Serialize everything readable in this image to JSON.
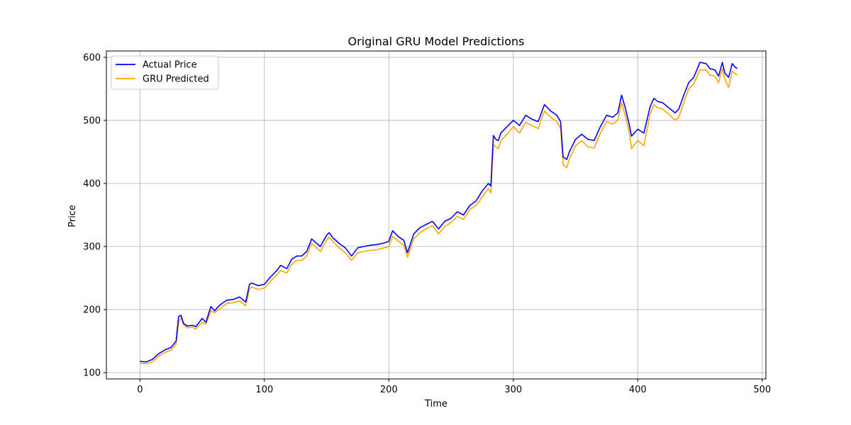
{
  "chart_data": {
    "type": "line",
    "title": "Original GRU Model Predictions",
    "xlabel": "Time",
    "ylabel": "Price",
    "xlim": [
      -27,
      503
    ],
    "ylim": [
      90,
      610
    ],
    "xticks": [
      0,
      100,
      200,
      300,
      400,
      500
    ],
    "yticks": [
      100,
      200,
      300,
      400,
      500,
      600
    ],
    "grid": true,
    "legend_position": "top-left",
    "series": [
      {
        "name": "Actual Price",
        "color": "#0000ff",
        "x": [
          0,
          5,
          10,
          15,
          20,
          25,
          29,
          31,
          33,
          35,
          38,
          42,
          45,
          50,
          53,
          57,
          60,
          63,
          66,
          70,
          75,
          80,
          85,
          88,
          90,
          95,
          100,
          105,
          110,
          113,
          118,
          122,
          126,
          130,
          134,
          138,
          142,
          145,
          150,
          152,
          155,
          160,
          165,
          170,
          175,
          180,
          185,
          190,
          195,
          200,
          203,
          208,
          212,
          215,
          220,
          225,
          230,
          235,
          240,
          245,
          250,
          255,
          260,
          265,
          270,
          275,
          280,
          282,
          284,
          286,
          288,
          290,
          295,
          300,
          305,
          310,
          315,
          320,
          325,
          330,
          335,
          338,
          340,
          343,
          345,
          350,
          355,
          360,
          365,
          370,
          375,
          380,
          384,
          387,
          390,
          393,
          395,
          400,
          405,
          410,
          413,
          416,
          420,
          425,
          430,
          433,
          437,
          441,
          445,
          450,
          455,
          458,
          462,
          465,
          468,
          470,
          473,
          476,
          478,
          480
        ],
        "y": [
          118,
          117,
          121,
          130,
          136,
          140,
          150,
          189,
          191,
          178,
          174,
          175,
          173,
          186,
          180,
          205,
          198,
          205,
          210,
          215,
          216,
          220,
          212,
          240,
          242,
          238,
          240,
          252,
          262,
          270,
          265,
          280,
          285,
          285,
          292,
          312,
          305,
          300,
          318,
          322,
          314,
          305,
          298,
          285,
          298,
          300,
          302,
          303,
          305,
          308,
          325,
          315,
          310,
          290,
          320,
          330,
          335,
          340,
          328,
          340,
          345,
          355,
          350,
          365,
          372,
          388,
          400,
          396,
          476,
          470,
          468,
          480,
          490,
          500,
          492,
          508,
          502,
          498,
          525,
          515,
          508,
          498,
          442,
          438,
          450,
          470,
          478,
          470,
          468,
          490,
          508,
          505,
          512,
          540,
          520,
          495,
          475,
          486,
          480,
          522,
          535,
          530,
          528,
          520,
          512,
          518,
          540,
          560,
          568,
          592,
          590,
          582,
          580,
          570,
          592,
          575,
          568,
          590,
          585,
          582
        ]
      },
      {
        "name": "GRU Predicted",
        "color": "#ffa500",
        "x": [
          0,
          5,
          10,
          15,
          20,
          25,
          29,
          31,
          33,
          35,
          38,
          42,
          45,
          50,
          53,
          57,
          60,
          63,
          66,
          70,
          75,
          80,
          85,
          88,
          90,
          95,
          100,
          105,
          110,
          113,
          118,
          122,
          126,
          130,
          134,
          138,
          142,
          145,
          150,
          152,
          155,
          160,
          165,
          170,
          175,
          180,
          185,
          190,
          195,
          200,
          203,
          208,
          212,
          215,
          220,
          225,
          230,
          235,
          240,
          245,
          250,
          255,
          260,
          265,
          270,
          275,
          280,
          282,
          284,
          286,
          288,
          290,
          295,
          300,
          305,
          310,
          315,
          320,
          325,
          330,
          335,
          338,
          340,
          343,
          345,
          350,
          355,
          360,
          365,
          370,
          375,
          380,
          384,
          387,
          390,
          393,
          395,
          400,
          405,
          410,
          413,
          416,
          420,
          425,
          430,
          433,
          437,
          441,
          445,
          450,
          455,
          458,
          462,
          465,
          468,
          470,
          473,
          476,
          478,
          480
        ],
        "y": [
          115,
          114,
          117,
          126,
          132,
          136,
          145,
          180,
          187,
          176,
          171,
          172,
          169,
          180,
          177,
          198,
          195,
          200,
          204,
          210,
          211,
          214,
          206,
          233,
          236,
          232,
          234,
          245,
          255,
          262,
          258,
          272,
          278,
          278,
          285,
          305,
          298,
          292,
          310,
          315,
          308,
          298,
          290,
          278,
          290,
          292,
          294,
          295,
          297,
          300,
          316,
          308,
          302,
          283,
          312,
          322,
          328,
          333,
          320,
          332,
          338,
          348,
          343,
          358,
          365,
          378,
          392,
          385,
          462,
          458,
          455,
          468,
          478,
          490,
          480,
          497,
          492,
          487,
          515,
          505,
          498,
          488,
          430,
          425,
          438,
          460,
          468,
          458,
          456,
          480,
          498,
          494,
          500,
          528,
          508,
          483,
          455,
          468,
          460,
          510,
          525,
          520,
          518,
          510,
          500,
          505,
          528,
          550,
          558,
          580,
          580,
          572,
          570,
          560,
          582,
          565,
          552,
          578,
          575,
          572
        ]
      }
    ]
  }
}
